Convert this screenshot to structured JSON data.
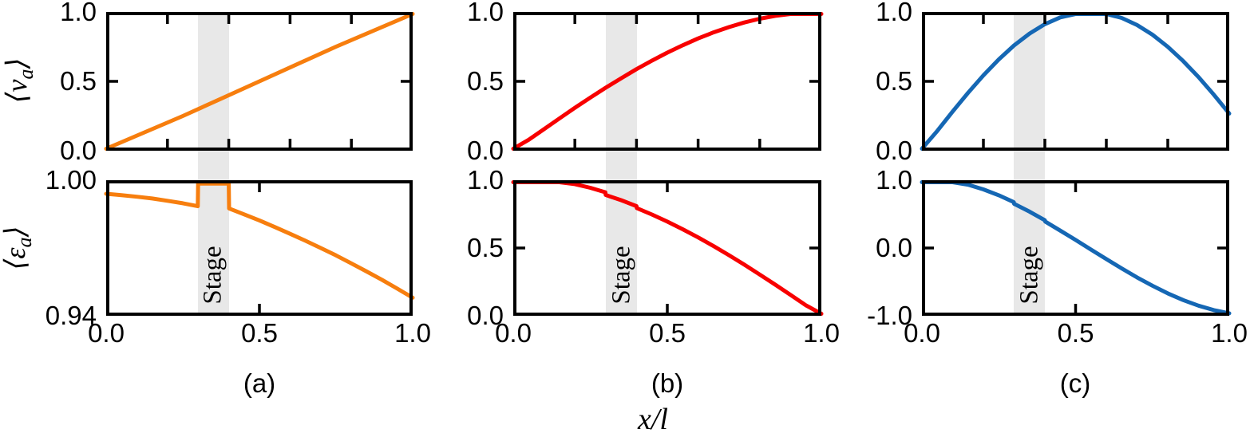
{
  "figure": {
    "xlabel": "x/l",
    "background": "#ffffff",
    "frame_color": "#000000",
    "band": {
      "label": "Stage",
      "x_start": 0.3,
      "x_end": 0.4,
      "color": "#e8e8e8"
    },
    "panel_labels": [
      "(a)",
      "(b)",
      "(c)"
    ],
    "ylabel_top": {
      "open": "⟨",
      "symbol": "v",
      "subscript": "a",
      "close": "⟩"
    },
    "ylabel_bottom": {
      "open": "⟨",
      "symbol": "ε",
      "subscript": "a",
      "close": "⟩"
    }
  },
  "chart_data": [
    {
      "id": "a-top",
      "type": "line",
      "row": 0,
      "col": 0,
      "color": "#F77E0E",
      "title": "",
      "xlabel": "x/l",
      "ylabel": "<v_a>",
      "xlim": [
        0,
        1
      ],
      "ylim": [
        0,
        1
      ],
      "grid": false,
      "yticklabels": [
        {
          "v": 1.0,
          "l": "1.0"
        },
        {
          "v": 0.5,
          "l": "0.5"
        },
        {
          "v": 0.0,
          "l": "0.0"
        }
      ],
      "xticklabels": [],
      "ticks": {
        "top": [
          0.2,
          0.4,
          0.6,
          0.8
        ],
        "bottom": [
          0.2,
          0.4,
          0.6,
          0.8
        ],
        "left": [
          0.5
        ],
        "right": [
          0.5
        ]
      },
      "x": [
        0,
        0.25,
        0.5,
        0.75,
        1
      ],
      "y": [
        0,
        0.25,
        0.5,
        0.75,
        1
      ]
    },
    {
      "id": "b-top",
      "type": "line",
      "row": 0,
      "col": 1,
      "color": "#F80000",
      "title": "",
      "xlabel": "x/l",
      "ylabel": "<v_a>",
      "xlim": [
        0,
        1
      ],
      "ylim": [
        0,
        1
      ],
      "grid": false,
      "yticklabels": [
        {
          "v": 1.0,
          "l": "1.0"
        },
        {
          "v": 0.5,
          "l": "0.5"
        },
        {
          "v": 0.0,
          "l": "0.0"
        }
      ],
      "xticklabels": [],
      "ticks": {
        "top": [
          0.2,
          0.4,
          0.6,
          0.8
        ],
        "bottom": [
          0.2,
          0.4,
          0.6,
          0.8
        ],
        "left": [
          0.5
        ],
        "right": [
          0.5
        ]
      },
      "x": [
        0,
        0.05,
        0.1,
        0.15,
        0.2,
        0.25,
        0.3,
        0.35,
        0.4,
        0.45,
        0.5,
        0.55,
        0.6,
        0.65,
        0.7,
        0.75,
        0.8,
        0.85,
        0.9,
        0.95,
        1
      ],
      "y": [
        0,
        0.079,
        0.156,
        0.233,
        0.309,
        0.383,
        0.454,
        0.522,
        0.588,
        0.649,
        0.707,
        0.76,
        0.809,
        0.853,
        0.891,
        0.924,
        0.951,
        0.972,
        0.988,
        0.997,
        1
      ]
    },
    {
      "id": "c-top",
      "type": "line",
      "row": 0,
      "col": 2,
      "color": "#1567B4",
      "title": "",
      "xlabel": "x/l",
      "ylabel": "<v_a>",
      "xlim": [
        0,
        1
      ],
      "ylim": [
        0,
        1
      ],
      "grid": false,
      "yticklabels": [
        {
          "v": 1.0,
          "l": "1.0"
        },
        {
          "v": 0.5,
          "l": "0.5"
        },
        {
          "v": 0.0,
          "l": "0.0"
        }
      ],
      "xticklabels": [],
      "ticks": {
        "top": [
          0.2,
          0.4,
          0.6,
          0.8
        ],
        "bottom": [
          0.2,
          0.4,
          0.6,
          0.8
        ],
        "left": [
          0.5
        ],
        "right": [
          0.5
        ]
      },
      "x": [
        0,
        0.05,
        0.1,
        0.15,
        0.2,
        0.25,
        0.3,
        0.35,
        0.4,
        0.45,
        0.5,
        0.55,
        0.6,
        0.65,
        0.7,
        0.75,
        0.8,
        0.85,
        0.9,
        0.95,
        1
      ],
      "y": [
        0,
        0.143,
        0.283,
        0.417,
        0.543,
        0.658,
        0.759,
        0.844,
        0.912,
        0.961,
        0.991,
        1,
        0.989,
        0.957,
        0.906,
        0.836,
        0.749,
        0.646,
        0.531,
        0.403,
        0.268
      ]
    },
    {
      "id": "a-bottom",
      "type": "line",
      "row": 1,
      "col": 0,
      "color": "#F77E0E",
      "title": "",
      "xlabel": "x/l",
      "ylabel": "<e_a>",
      "xlim": [
        0,
        1
      ],
      "ylim": [
        0.94,
        1.0
      ],
      "grid": false,
      "yticklabels": [
        {
          "v": 1.0,
          "l": "1.00"
        },
        {
          "v": 0.94,
          "l": "0.94"
        }
      ],
      "xticklabels": [
        {
          "v": 0.0,
          "l": "0.0"
        },
        {
          "v": 0.5,
          "l": "0.5"
        },
        {
          "v": 1.0,
          "l": "1.0"
        }
      ],
      "ticks": {
        "top": [
          0.5
        ],
        "bottom": [
          0.5
        ],
        "left": [],
        "right": []
      },
      "x": [
        0,
        0.05,
        0.1,
        0.15,
        0.2,
        0.25,
        0.299,
        0.3,
        0.4,
        0.401,
        0.45,
        0.5,
        0.55,
        0.6,
        0.65,
        0.7,
        0.75,
        0.8,
        0.85,
        0.9,
        0.95,
        1
      ],
      "y": [
        0.994,
        0.9934,
        0.9927,
        0.9919,
        0.9909,
        0.9898,
        0.9885,
        0.9985,
        0.9985,
        0.9875,
        0.9849,
        0.9822,
        0.9793,
        0.9763,
        0.9732,
        0.97,
        0.9667,
        0.9632,
        0.9596,
        0.9559,
        0.952,
        0.948
      ]
    },
    {
      "id": "b-bottom",
      "type": "line",
      "row": 1,
      "col": 1,
      "color": "#F80000",
      "title": "",
      "xlabel": "x/l",
      "ylabel": "<e_a>",
      "xlim": [
        0,
        1
      ],
      "ylim": [
        0,
        1
      ],
      "grid": false,
      "yticklabels": [
        {
          "v": 1.0,
          "l": "1.0"
        },
        {
          "v": 0.5,
          "l": "0.5"
        },
        {
          "v": 0.0,
          "l": "0.0"
        }
      ],
      "xticklabels": [
        {
          "v": 0.0,
          "l": "0.0"
        },
        {
          "v": 0.5,
          "l": "0.5"
        },
        {
          "v": 1.0,
          "l": "1.0"
        }
      ],
      "ticks": {
        "top": [
          0.5
        ],
        "bottom": [
          0.5
        ],
        "left": [
          0.5
        ],
        "right": [
          0.5
        ]
      },
      "x": [
        0,
        0.05,
        0.1,
        0.15,
        0.2,
        0.25,
        0.299,
        0.3,
        0.35,
        0.4,
        0.401,
        0.45,
        0.5,
        0.55,
        0.6,
        0.65,
        0.7,
        0.75,
        0.8,
        0.85,
        0.9,
        0.95,
        1
      ],
      "y": [
        1,
        1,
        1,
        0.992,
        0.971,
        0.944,
        0.911,
        0.891,
        0.853,
        0.809,
        0.794,
        0.747,
        0.695,
        0.638,
        0.578,
        0.514,
        0.447,
        0.377,
        0.304,
        0.23,
        0.154,
        0.077,
        0
      ]
    },
    {
      "id": "c-bottom",
      "type": "line",
      "row": 1,
      "col": 2,
      "color": "#1567B4",
      "title": "",
      "xlabel": "x/l",
      "ylabel": "<e_a>",
      "xlim": [
        0,
        1
      ],
      "ylim": [
        -1,
        1
      ],
      "grid": false,
      "yticklabels": [
        {
          "v": 1.0,
          "l": "1.0"
        },
        {
          "v": 0.0,
          "l": "0.0"
        },
        {
          "v": -1.0,
          "l": "-1.0"
        }
      ],
      "xticklabels": [
        {
          "v": 0.0,
          "l": "0.0"
        },
        {
          "v": 0.5,
          "l": "0.5"
        },
        {
          "v": 1.0,
          "l": "1.0"
        }
      ],
      "ticks": {
        "top": [
          0.5
        ],
        "bottom": [
          0.5
        ],
        "left": [
          0.0
        ],
        "right": [
          0.0
        ]
      },
      "x": [
        0,
        0.05,
        0.1,
        0.15,
        0.2,
        0.25,
        0.299,
        0.3,
        0.35,
        0.4,
        0.401,
        0.45,
        0.5,
        0.55,
        0.6,
        0.65,
        0.7,
        0.75,
        0.8,
        0.85,
        0.9,
        0.95,
        1
      ],
      "y": [
        1,
        1,
        0.984,
        0.934,
        0.865,
        0.778,
        0.677,
        0.652,
        0.536,
        0.41,
        0.39,
        0.257,
        0.119,
        -0.023,
        -0.164,
        -0.301,
        -0.434,
        -0.557,
        -0.669,
        -0.768,
        -0.851,
        -0.917,
        -0.964
      ]
    }
  ]
}
